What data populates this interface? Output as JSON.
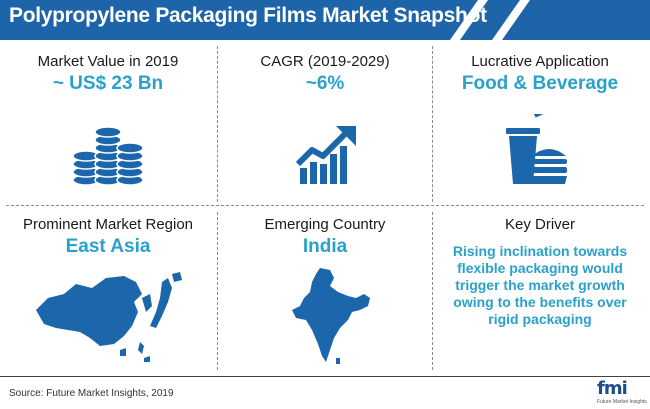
{
  "title": "Polypropylene Packaging Films Market Snapshot",
  "colors": {
    "banner": "#1e64a8",
    "accent": "#2aa1cb",
    "icon": "#1c66ab"
  },
  "cards": [
    {
      "label": "Market Value in 2019",
      "value": "~ US$ 23 Bn",
      "icon": "coin-stack-icon"
    },
    {
      "label": "CAGR (2019-2029)",
      "value": "~6%",
      "icon": "growth-chart-icon"
    },
    {
      "label": "Lucrative Application",
      "value": "Food & Beverage",
      "icon": "food-beverage-icon"
    },
    {
      "label": "Prominent Market Region",
      "value": "East Asia",
      "icon": "east-asia-map-icon"
    },
    {
      "label": "Emerging Country",
      "value": "India",
      "icon": "india-map-icon"
    },
    {
      "label": "Key Driver",
      "value": "Rising inclination towards flexible packaging would trigger the market growth owing to the benefits over rigid packaging"
    }
  ],
  "footer": {
    "source": "Source: Future Market Insights, 2019"
  },
  "logo": {
    "text": "fmi",
    "subtitle": "Future Market Insights"
  }
}
